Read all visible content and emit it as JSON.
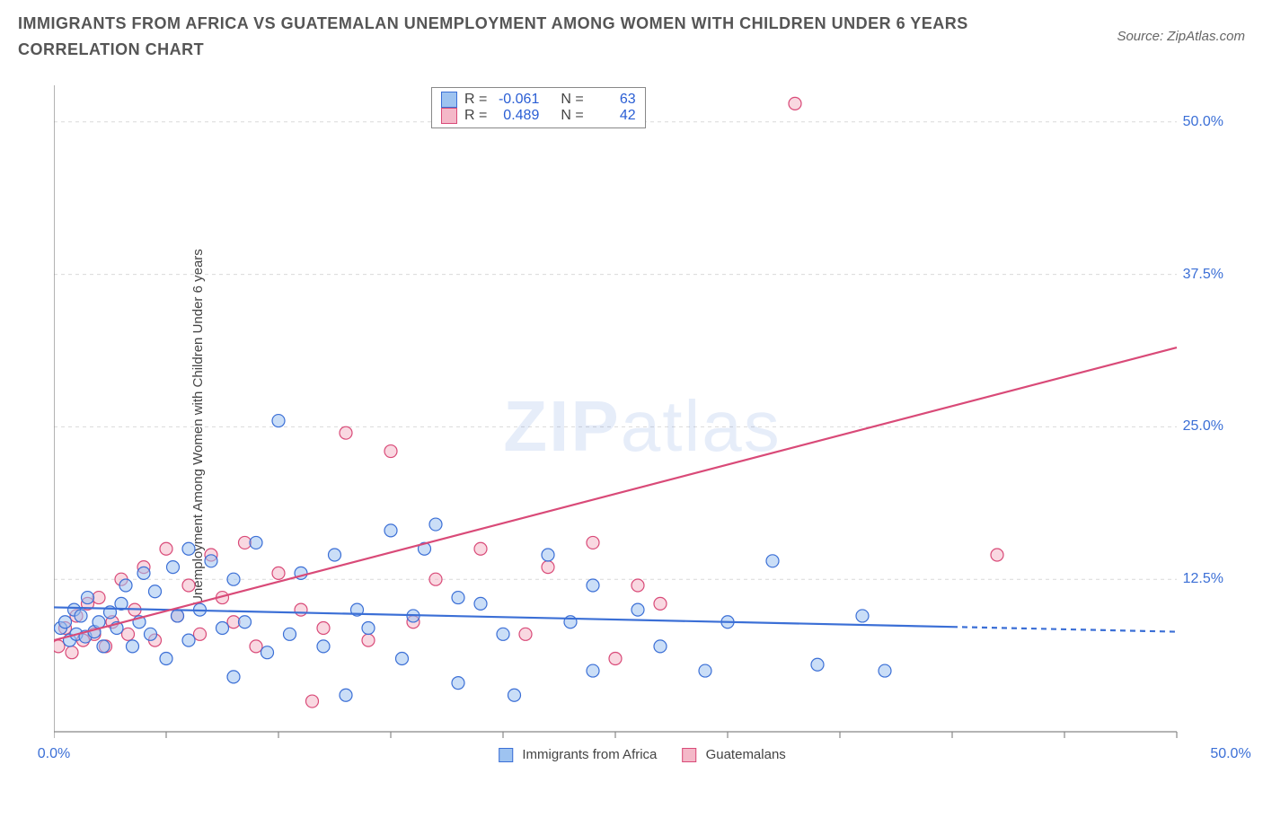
{
  "title": "IMMIGRANTS FROM AFRICA VS GUATEMALAN UNEMPLOYMENT AMONG WOMEN WITH CHILDREN UNDER 6 YEARS CORRELATION CHART",
  "source": "Source: ZipAtlas.com",
  "watermark_a": "ZIP",
  "watermark_b": "atlas",
  "y_axis_label": "Unemployment Among Women with Children Under 6 years",
  "series_a_name": "Immigrants from Africa",
  "series_b_name": "Guatemalans",
  "legend_stats": {
    "a": {
      "r_label": "R =",
      "r": "-0.061",
      "n_label": "N =",
      "n": "63"
    },
    "b": {
      "r_label": "R =",
      "r": "0.489",
      "n_label": "N =",
      "n": "42"
    }
  },
  "x_ticks_labels": {
    "min": "0.0%",
    "max": "50.0%"
  },
  "y_ticks_labels": [
    "12.5%",
    "25.0%",
    "37.5%",
    "50.0%"
  ],
  "chart": {
    "type": "scatter",
    "xlim": [
      0,
      50
    ],
    "ylim": [
      0,
      53
    ],
    "x_ticks": [
      0,
      5,
      10,
      15,
      20,
      25,
      30,
      35,
      40,
      45,
      50
    ],
    "y_gridlines": [
      12.5,
      25,
      37.5,
      50
    ],
    "grid_color": "#d9d9d9",
    "axis_color": "#888888",
    "background": "#ffffff",
    "marker_radius": 7,
    "marker_stroke_width": 1.2,
    "trend_line_width": 2.2,
    "series_a": {
      "fill": "#9ec3f0",
      "stroke": "#3b6fd6",
      "fill_opacity": 0.55,
      "trend": {
        "y_at_x0": 10.2,
        "y_at_x50": 8.2,
        "solid_until_x": 40
      },
      "points": [
        [
          0.3,
          8.5
        ],
        [
          0.5,
          9.0
        ],
        [
          0.7,
          7.5
        ],
        [
          0.9,
          10.0
        ],
        [
          1.0,
          8.0
        ],
        [
          1.2,
          9.5
        ],
        [
          1.4,
          7.8
        ],
        [
          1.5,
          11.0
        ],
        [
          1.8,
          8.2
        ],
        [
          2.0,
          9.0
        ],
        [
          2.2,
          7.0
        ],
        [
          2.5,
          9.8
        ],
        [
          2.8,
          8.5
        ],
        [
          3.0,
          10.5
        ],
        [
          3.2,
          12.0
        ],
        [
          3.5,
          7.0
        ],
        [
          3.8,
          9.0
        ],
        [
          4.0,
          13.0
        ],
        [
          4.3,
          8.0
        ],
        [
          4.5,
          11.5
        ],
        [
          5.0,
          6.0
        ],
        [
          5.3,
          13.5
        ],
        [
          5.5,
          9.5
        ],
        [
          6.0,
          7.5
        ],
        [
          6.0,
          15.0
        ],
        [
          6.5,
          10.0
        ],
        [
          7.0,
          14.0
        ],
        [
          7.5,
          8.5
        ],
        [
          8.0,
          12.5
        ],
        [
          8.0,
          4.5
        ],
        [
          8.5,
          9.0
        ],
        [
          9.0,
          15.5
        ],
        [
          9.5,
          6.5
        ],
        [
          10.0,
          25.5
        ],
        [
          10.5,
          8.0
        ],
        [
          11.0,
          13.0
        ],
        [
          12.0,
          7.0
        ],
        [
          12.5,
          14.5
        ],
        [
          13.0,
          3.0
        ],
        [
          13.5,
          10.0
        ],
        [
          14.0,
          8.5
        ],
        [
          15.0,
          16.5
        ],
        [
          15.5,
          6.0
        ],
        [
          16.0,
          9.5
        ],
        [
          16.5,
          15.0
        ],
        [
          17.0,
          17.0
        ],
        [
          18.0,
          11.0
        ],
        [
          18.0,
          4.0
        ],
        [
          19.0,
          10.5
        ],
        [
          20.0,
          8.0
        ],
        [
          20.5,
          3.0
        ],
        [
          22.0,
          14.5
        ],
        [
          23.0,
          9.0
        ],
        [
          24.0,
          12.0
        ],
        [
          24.0,
          5.0
        ],
        [
          26.0,
          10.0
        ],
        [
          27.0,
          7.0
        ],
        [
          29.0,
          5.0
        ],
        [
          30.0,
          9.0
        ],
        [
          32.0,
          14.0
        ],
        [
          34.0,
          5.5
        ],
        [
          36.0,
          9.5
        ],
        [
          37.0,
          5.0
        ]
      ]
    },
    "series_b": {
      "fill": "#f4b8c8",
      "stroke": "#d94a78",
      "fill_opacity": 0.55,
      "trend": {
        "y_at_x0": 7.5,
        "y_at_x50": 31.5,
        "solid_until_x": 50
      },
      "points": [
        [
          0.2,
          7.0
        ],
        [
          0.5,
          8.5
        ],
        [
          0.8,
          6.5
        ],
        [
          1.0,
          9.5
        ],
        [
          1.3,
          7.5
        ],
        [
          1.5,
          10.5
        ],
        [
          1.8,
          8.0
        ],
        [
          2.0,
          11.0
        ],
        [
          2.3,
          7.0
        ],
        [
          2.6,
          9.0
        ],
        [
          3.0,
          12.5
        ],
        [
          3.3,
          8.0
        ],
        [
          3.6,
          10.0
        ],
        [
          4.0,
          13.5
        ],
        [
          4.5,
          7.5
        ],
        [
          5.0,
          15.0
        ],
        [
          5.5,
          9.5
        ],
        [
          6.0,
          12.0
        ],
        [
          6.5,
          8.0
        ],
        [
          7.0,
          14.5
        ],
        [
          7.5,
          11.0
        ],
        [
          8.0,
          9.0
        ],
        [
          8.5,
          15.5
        ],
        [
          9.0,
          7.0
        ],
        [
          10.0,
          13.0
        ],
        [
          11.0,
          10.0
        ],
        [
          11.5,
          2.5
        ],
        [
          12.0,
          8.5
        ],
        [
          13.0,
          24.5
        ],
        [
          14.0,
          7.5
        ],
        [
          15.0,
          23.0
        ],
        [
          16.0,
          9.0
        ],
        [
          17.0,
          12.5
        ],
        [
          19.0,
          15.0
        ],
        [
          21.0,
          8.0
        ],
        [
          22.0,
          13.5
        ],
        [
          24.0,
          15.5
        ],
        [
          25.0,
          6.0
        ],
        [
          26.0,
          12.0
        ],
        [
          27.0,
          10.5
        ],
        [
          33.0,
          51.5
        ],
        [
          42.0,
          14.5
        ]
      ]
    }
  }
}
